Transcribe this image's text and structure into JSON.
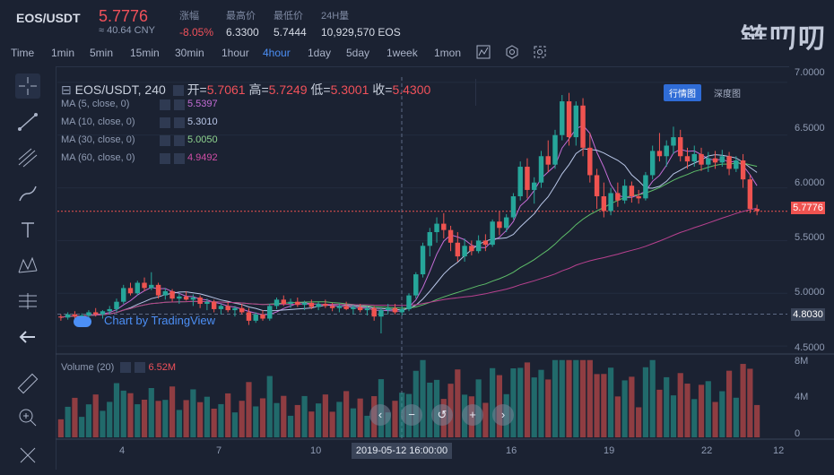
{
  "header": {
    "symbol": "EOS/USDT",
    "price": "5.7776",
    "cny": "≈ 40.64 CNY",
    "stats": [
      {
        "label": "涨幅",
        "value": "-8.05%"
      },
      {
        "label": "最高价",
        "value": "6.3300"
      },
      {
        "label": "最低价",
        "value": "5.7444"
      },
      {
        "label": "24H量",
        "value": "10,929,570 EOS"
      }
    ],
    "logo_text": "链叨叨",
    "view_tabs": [
      "行情图",
      "深度图"
    ]
  },
  "timeframes": [
    "Time",
    "1min",
    "5min",
    "15min",
    "30min",
    "1hour",
    "4hour",
    "1day",
    "5day",
    "1week",
    "1mon"
  ],
  "active_timeframe": "4hour",
  "toolbar_icons": [
    "indicator-icon",
    "settings-icon",
    "screenshot-icon"
  ],
  "left_tools": [
    "crosshair-icon",
    "trendline-icon",
    "pitchfork-icon",
    "brush-icon",
    "text-icon",
    "pattern-icon",
    "measure-icon",
    "back-arrow-icon",
    "ruler-icon",
    "zoom-in-icon",
    "magnet-icon"
  ],
  "legend": {
    "title": "EOS/USDT, 240",
    "open_label": "开=",
    "open": "5.7061",
    "high_label": "高=",
    "high": "5.7249",
    "low_label": "低=",
    "low": "5.3001",
    "close_label": "收=",
    "close": "5.4300",
    "mas": [
      {
        "label": "MA (5, close, 0)",
        "value": "5.5397",
        "color": "#c46dd6"
      },
      {
        "label": "MA (10, close, 0)",
        "value": "5.3010",
        "color": "#b9c7e8"
      },
      {
        "label": "MA (30, close, 0)",
        "value": "5.0050",
        "color": "#8fd48f"
      },
      {
        "label": "MA (60, close, 0)",
        "value": "4.9492",
        "color": "#d04ea6"
      }
    ]
  },
  "volume": {
    "label": "Volume (20)",
    "value": "6.52M"
  },
  "watermark": "Chart by TradingView",
  "price_axis": [
    "7.0000",
    "6.5000",
    "6.0000",
    "5.5000",
    "5.0000",
    "4.5000"
  ],
  "volume_axis": [
    "8M",
    "4M",
    "0"
  ],
  "current_price_tag": "5.7776",
  "crosshair_price_tag": "4.8030",
  "date_axis": [
    "4",
    "7",
    "10",
    "16",
    "19",
    "22",
    "12"
  ],
  "crosshair_date": "2019-05-12 16:00:00",
  "colors": {
    "up": "#26a69a",
    "down": "#ef5350",
    "accent": "#4c8ff5",
    "background": "#1b2232"
  },
  "chart_data": {
    "type": "candlestick",
    "ylim": [
      4.45,
      7.05
    ],
    "candles": [
      [
        4.78,
        4.8,
        4.74,
        4.77
      ],
      [
        4.77,
        4.82,
        4.75,
        4.8
      ],
      [
        4.8,
        4.83,
        4.76,
        4.78
      ],
      [
        4.78,
        4.81,
        4.75,
        4.79
      ],
      [
        4.79,
        4.84,
        4.77,
        4.82
      ],
      [
        4.82,
        4.86,
        4.78,
        4.8
      ],
      [
        4.8,
        4.84,
        4.76,
        4.83
      ],
      [
        4.83,
        4.88,
        4.8,
        4.85
      ],
      [
        4.85,
        4.95,
        4.82,
        4.92
      ],
      [
        4.92,
        5.08,
        4.9,
        5.05
      ],
      [
        5.05,
        5.1,
        4.98,
        5.0
      ],
      [
        5.0,
        5.12,
        4.98,
        5.1
      ],
      [
        5.1,
        5.15,
        5.02,
        5.05
      ],
      [
        5.05,
        5.2,
        5.03,
        5.08
      ],
      [
        5.08,
        5.1,
        4.95,
        4.98
      ],
      [
        4.98,
        5.05,
        4.94,
        5.02
      ],
      [
        5.02,
        5.04,
        4.92,
        4.95
      ],
      [
        4.95,
        5.0,
        4.9,
        4.97
      ],
      [
        4.97,
        5.02,
        4.93,
        4.94
      ],
      [
        4.94,
        4.99,
        4.88,
        4.96
      ],
      [
        4.96,
        4.98,
        4.86,
        4.9
      ],
      [
        4.9,
        4.95,
        4.84,
        4.92
      ],
      [
        4.92,
        4.94,
        4.82,
        4.85
      ],
      [
        4.85,
        4.9,
        4.8,
        4.88
      ],
      [
        4.88,
        4.92,
        4.82,
        4.84
      ],
      [
        4.84,
        4.88,
        4.78,
        4.86
      ],
      [
        4.86,
        4.9,
        4.8,
        4.82
      ],
      [
        4.82,
        4.86,
        4.7,
        4.74
      ],
      [
        4.74,
        4.82,
        4.72,
        4.8
      ],
      [
        4.8,
        4.84,
        4.74,
        4.76
      ],
      [
        4.76,
        4.9,
        4.74,
        4.88
      ],
      [
        4.88,
        4.96,
        4.85,
        4.94
      ],
      [
        4.94,
        4.98,
        4.88,
        4.9
      ],
      [
        4.9,
        4.95,
        4.86,
        4.92
      ],
      [
        4.92,
        4.96,
        4.87,
        4.89
      ],
      [
        4.89,
        4.93,
        4.84,
        4.91
      ],
      [
        4.91,
        4.94,
        4.85,
        4.87
      ],
      [
        4.87,
        4.92,
        4.84,
        4.9
      ],
      [
        4.9,
        4.94,
        4.86,
        4.88
      ],
      [
        4.88,
        4.91,
        4.83,
        4.86
      ],
      [
        4.86,
        4.9,
        4.82,
        4.88
      ],
      [
        4.88,
        4.92,
        4.84,
        4.85
      ],
      [
        4.85,
        4.89,
        4.8,
        4.87
      ],
      [
        4.87,
        4.9,
        4.82,
        4.84
      ],
      [
        4.84,
        4.88,
        4.79,
        4.86
      ],
      [
        4.86,
        4.88,
        4.74,
        4.78
      ],
      [
        4.78,
        4.86,
        4.62,
        4.84
      ],
      [
        4.84,
        4.9,
        4.8,
        4.86
      ],
      [
        4.86,
        4.9,
        4.8,
        4.82
      ],
      [
        4.82,
        4.88,
        4.79,
        4.85
      ],
      [
        4.85,
        5.0,
        4.83,
        4.98
      ],
      [
        4.98,
        5.2,
        4.95,
        5.18
      ],
      [
        5.18,
        5.48,
        5.15,
        5.45
      ],
      [
        5.45,
        5.62,
        5.35,
        5.58
      ],
      [
        5.58,
        5.72,
        5.48,
        5.66
      ],
      [
        5.66,
        5.76,
        5.52,
        5.6
      ],
      [
        5.6,
        5.64,
        5.4,
        5.48
      ],
      [
        5.48,
        5.58,
        5.3,
        5.35
      ],
      [
        5.35,
        5.52,
        5.3,
        5.45
      ],
      [
        5.45,
        5.5,
        5.36,
        5.4
      ],
      [
        5.4,
        5.55,
        5.38,
        5.5
      ],
      [
        5.5,
        5.56,
        5.4,
        5.46
      ],
      [
        5.46,
        5.7,
        5.44,
        5.68
      ],
      [
        5.68,
        5.78,
        5.55,
        5.62
      ],
      [
        5.62,
        5.75,
        5.58,
        5.72
      ],
      [
        5.72,
        5.95,
        5.7,
        5.92
      ],
      [
        5.92,
        6.25,
        5.88,
        6.2
      ],
      [
        6.2,
        6.28,
        5.9,
        5.98
      ],
      [
        5.98,
        6.1,
        5.85,
        6.05
      ],
      [
        6.05,
        6.35,
        6.0,
        6.3
      ],
      [
        6.3,
        6.45,
        6.15,
        6.22
      ],
      [
        6.22,
        6.55,
        6.18,
        6.5
      ],
      [
        6.5,
        6.88,
        6.45,
        6.82
      ],
      [
        6.82,
        6.9,
        6.4,
        6.48
      ],
      [
        6.48,
        6.82,
        6.4,
        6.78
      ],
      [
        6.78,
        6.85,
        6.3,
        6.38
      ],
      [
        6.38,
        6.52,
        6.05,
        6.12
      ],
      [
        6.12,
        6.18,
        5.8,
        5.92
      ],
      [
        5.92,
        6.05,
        5.72,
        5.78
      ],
      [
        5.78,
        6.0,
        5.74,
        5.95
      ],
      [
        5.95,
        6.05,
        5.82,
        5.88
      ],
      [
        5.88,
        6.08,
        5.85,
        6.02
      ],
      [
        6.02,
        6.06,
        5.86,
        5.92
      ],
      [
        5.92,
        5.98,
        5.85,
        5.9
      ],
      [
        5.9,
        6.15,
        5.88,
        6.12
      ],
      [
        6.12,
        6.4,
        6.08,
        6.35
      ],
      [
        6.35,
        6.52,
        6.25,
        6.3
      ],
      [
        6.3,
        6.45,
        6.2,
        6.4
      ],
      [
        6.4,
        6.58,
        6.32,
        6.48
      ],
      [
        6.48,
        6.55,
        6.25,
        6.3
      ],
      [
        6.3,
        6.38,
        6.18,
        6.25
      ],
      [
        6.25,
        6.4,
        6.2,
        6.32
      ],
      [
        6.32,
        6.38,
        6.16,
        6.22
      ],
      [
        6.22,
        6.34,
        6.15,
        6.28
      ],
      [
        6.28,
        6.35,
        6.18,
        6.24
      ],
      [
        6.24,
        6.36,
        6.2,
        6.3
      ],
      [
        6.3,
        6.34,
        6.12,
        6.18
      ],
      [
        6.18,
        6.3,
        6.15,
        6.26
      ],
      [
        6.26,
        6.32,
        6.0,
        6.08
      ],
      [
        6.08,
        6.12,
        5.76,
        5.8
      ],
      [
        5.8,
        5.84,
        5.74,
        5.78
      ]
    ],
    "volume_range": [
      0,
      8000000
    ]
  }
}
